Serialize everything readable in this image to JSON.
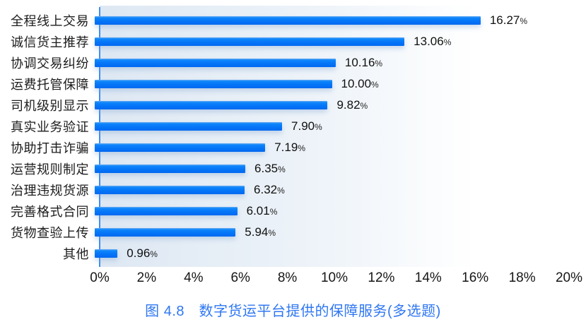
{
  "chart_data": {
    "type": "bar",
    "orientation": "horizontal",
    "title": "图 4.8　数字货运平台提供的保障服务(多选题)",
    "categories": [
      "全程线上交易",
      "诚信货主推荐",
      "协调交易纠纷",
      "运费托管保障",
      "司机级别显示",
      "真实业务验证",
      "协助打击诈骗",
      "运营规则制定",
      "治理违规货源",
      "完善格式合同",
      "货物查验上传",
      "其他"
    ],
    "values": [
      16.27,
      13.06,
      10.16,
      10.0,
      9.82,
      7.9,
      7.19,
      6.35,
      6.32,
      6.01,
      5.94,
      0.96
    ],
    "value_labels": [
      "16.27",
      "13.06",
      "10.16",
      "10.00",
      "9.82",
      "7.90",
      "7.19",
      "6.35",
      "6.32",
      "6.01",
      "5.94",
      "0.96"
    ],
    "value_suffix": "%",
    "x_ticks": [
      "0%",
      "2%",
      "4%",
      "6%",
      "8%",
      "10%",
      "12%",
      "14%",
      "16%",
      "18%",
      "20%"
    ],
    "xlim": [
      0,
      20
    ],
    "grid": false,
    "legend": false,
    "colors": {
      "bar_top": "#0e86fb",
      "bar_bottom": "#0069f1",
      "axis_line": "#3f8ef3",
      "title": "#2f77f3",
      "label_text": "#1c1c1c"
    }
  }
}
